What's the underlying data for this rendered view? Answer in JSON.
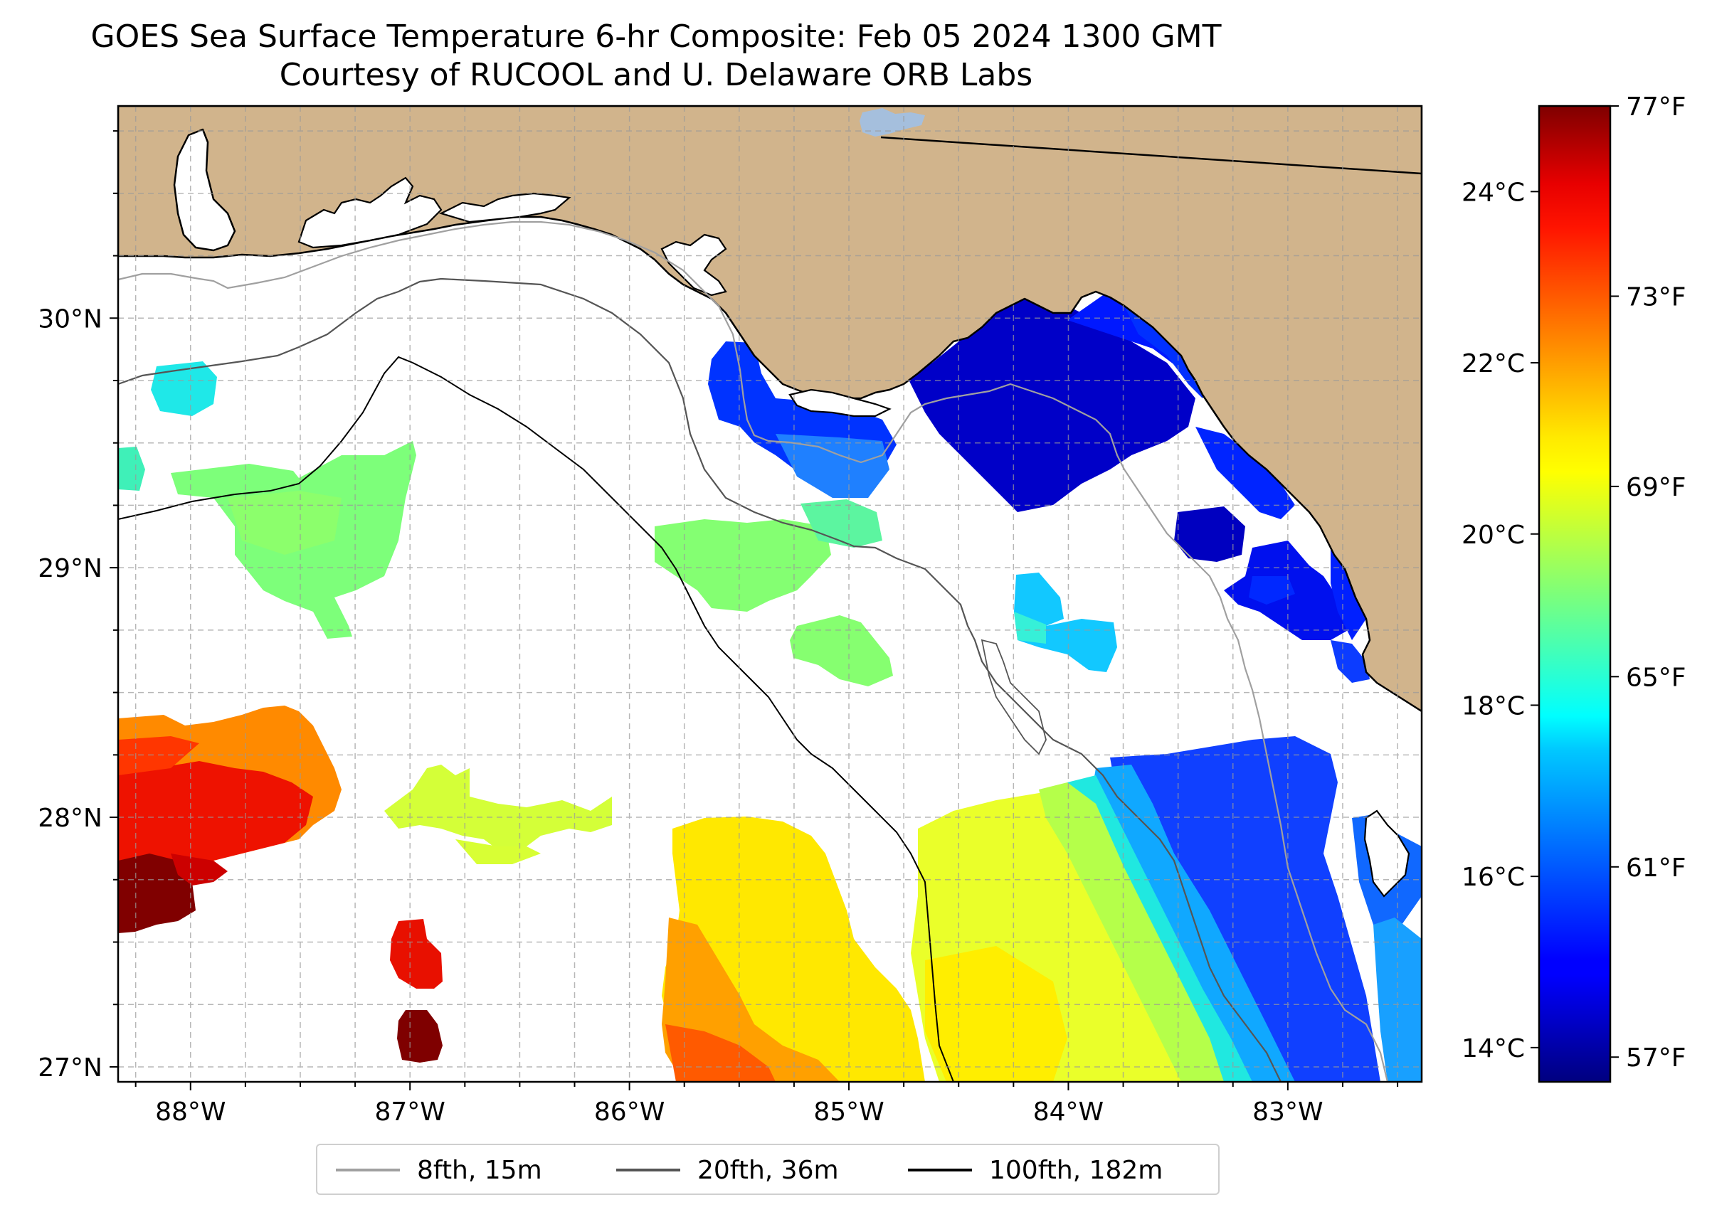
{
  "title": "GOES Sea Surface Temperature 6-hr Composite: Feb 05 2024 1300 GMT",
  "subtitle": "Courtesy of RUCOOL and U. Delaware ORB Labs",
  "map": {
    "land_color": "#d1b48c",
    "water_color": "#ffffff",
    "lon_range": [
      -88.33,
      -82.39
    ],
    "lat_range": [
      26.94,
      30.85
    ],
    "lon_ticks": [
      {
        "value": -88,
        "label": "88°W"
      },
      {
        "value": -87,
        "label": "87°W"
      },
      {
        "value": -86,
        "label": "86°W"
      },
      {
        "value": -85,
        "label": "85°W"
      },
      {
        "value": -84,
        "label": "84°W"
      },
      {
        "value": -83,
        "label": "83°W"
      }
    ],
    "lat_ticks": [
      {
        "value": 27,
        "label": "27°N"
      },
      {
        "value": 28,
        "label": "28°N"
      },
      {
        "value": 29,
        "label": "29°N"
      },
      {
        "value": 30,
        "label": "30°N"
      }
    ],
    "grid": "dashed, every 0.25°"
  },
  "colorbar": {
    "colormap": "jet",
    "range_c": [
      13.6,
      25.0
    ],
    "celsius_ticks": [
      {
        "value": 14,
        "label": "14°C"
      },
      {
        "value": 16,
        "label": "16°C"
      },
      {
        "value": 18,
        "label": "18°C"
      },
      {
        "value": 20,
        "label": "20°C"
      },
      {
        "value": 22,
        "label": "22°C"
      },
      {
        "value": 24,
        "label": "24°C"
      }
    ],
    "fahrenheit_ticks": [
      {
        "value": 57,
        "label": "57°F"
      },
      {
        "value": 61,
        "label": "61°F"
      },
      {
        "value": 65,
        "label": "65°F"
      },
      {
        "value": 69,
        "label": "69°F"
      },
      {
        "value": 73,
        "label": "73°F"
      },
      {
        "value": 77,
        "label": "77°F"
      }
    ]
  },
  "legend": {
    "placement": "bottom-center",
    "items": [
      {
        "label": "8fth, 15m",
        "color": "#a0a0a0"
      },
      {
        "label": "20fth, 36m",
        "color": "#555555"
      },
      {
        "label": "100fth, 182m",
        "color": "#000000"
      }
    ]
  }
}
